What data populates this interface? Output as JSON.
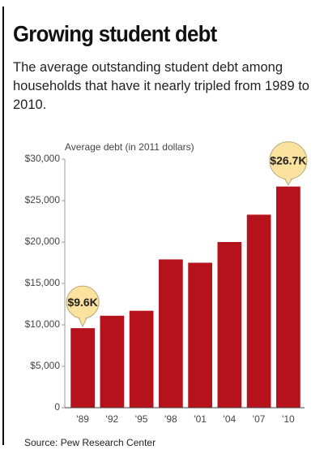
{
  "chart_data": {
    "type": "bar",
    "title": "Growing student debt",
    "subtitle": "The average outstanding student debt among households that have it nearly tripled from 1989 to 2010.",
    "y_label": "Average debt (in 2011 dollars)",
    "source": "Source: Pew Research Center",
    "categories": [
      "'89",
      "'92",
      "'95",
      "'98",
      "'01",
      "'04",
      "'07",
      "'10"
    ],
    "values": [
      9600,
      11100,
      11700,
      17900,
      17500,
      20000,
      23300,
      26700
    ],
    "value_labels": [
      "$9.6K",
      null,
      null,
      null,
      null,
      null,
      null,
      "$26.7K"
    ],
    "color": "#b5121b",
    "ylim": [
      0,
      30000
    ],
    "yticks": [
      0,
      {
        "value": 5000,
        "label": "$5,000"
      },
      {
        "value": 10000,
        "label": "$10,000"
      },
      {
        "value": 15000,
        "label": "$15,000"
      },
      {
        "value": 20000,
        "label": "$20,000"
      },
      {
        "value": 25000,
        "label": "$25,000"
      },
      {
        "value": 30000,
        "label": "$30,000"
      }
    ]
  }
}
